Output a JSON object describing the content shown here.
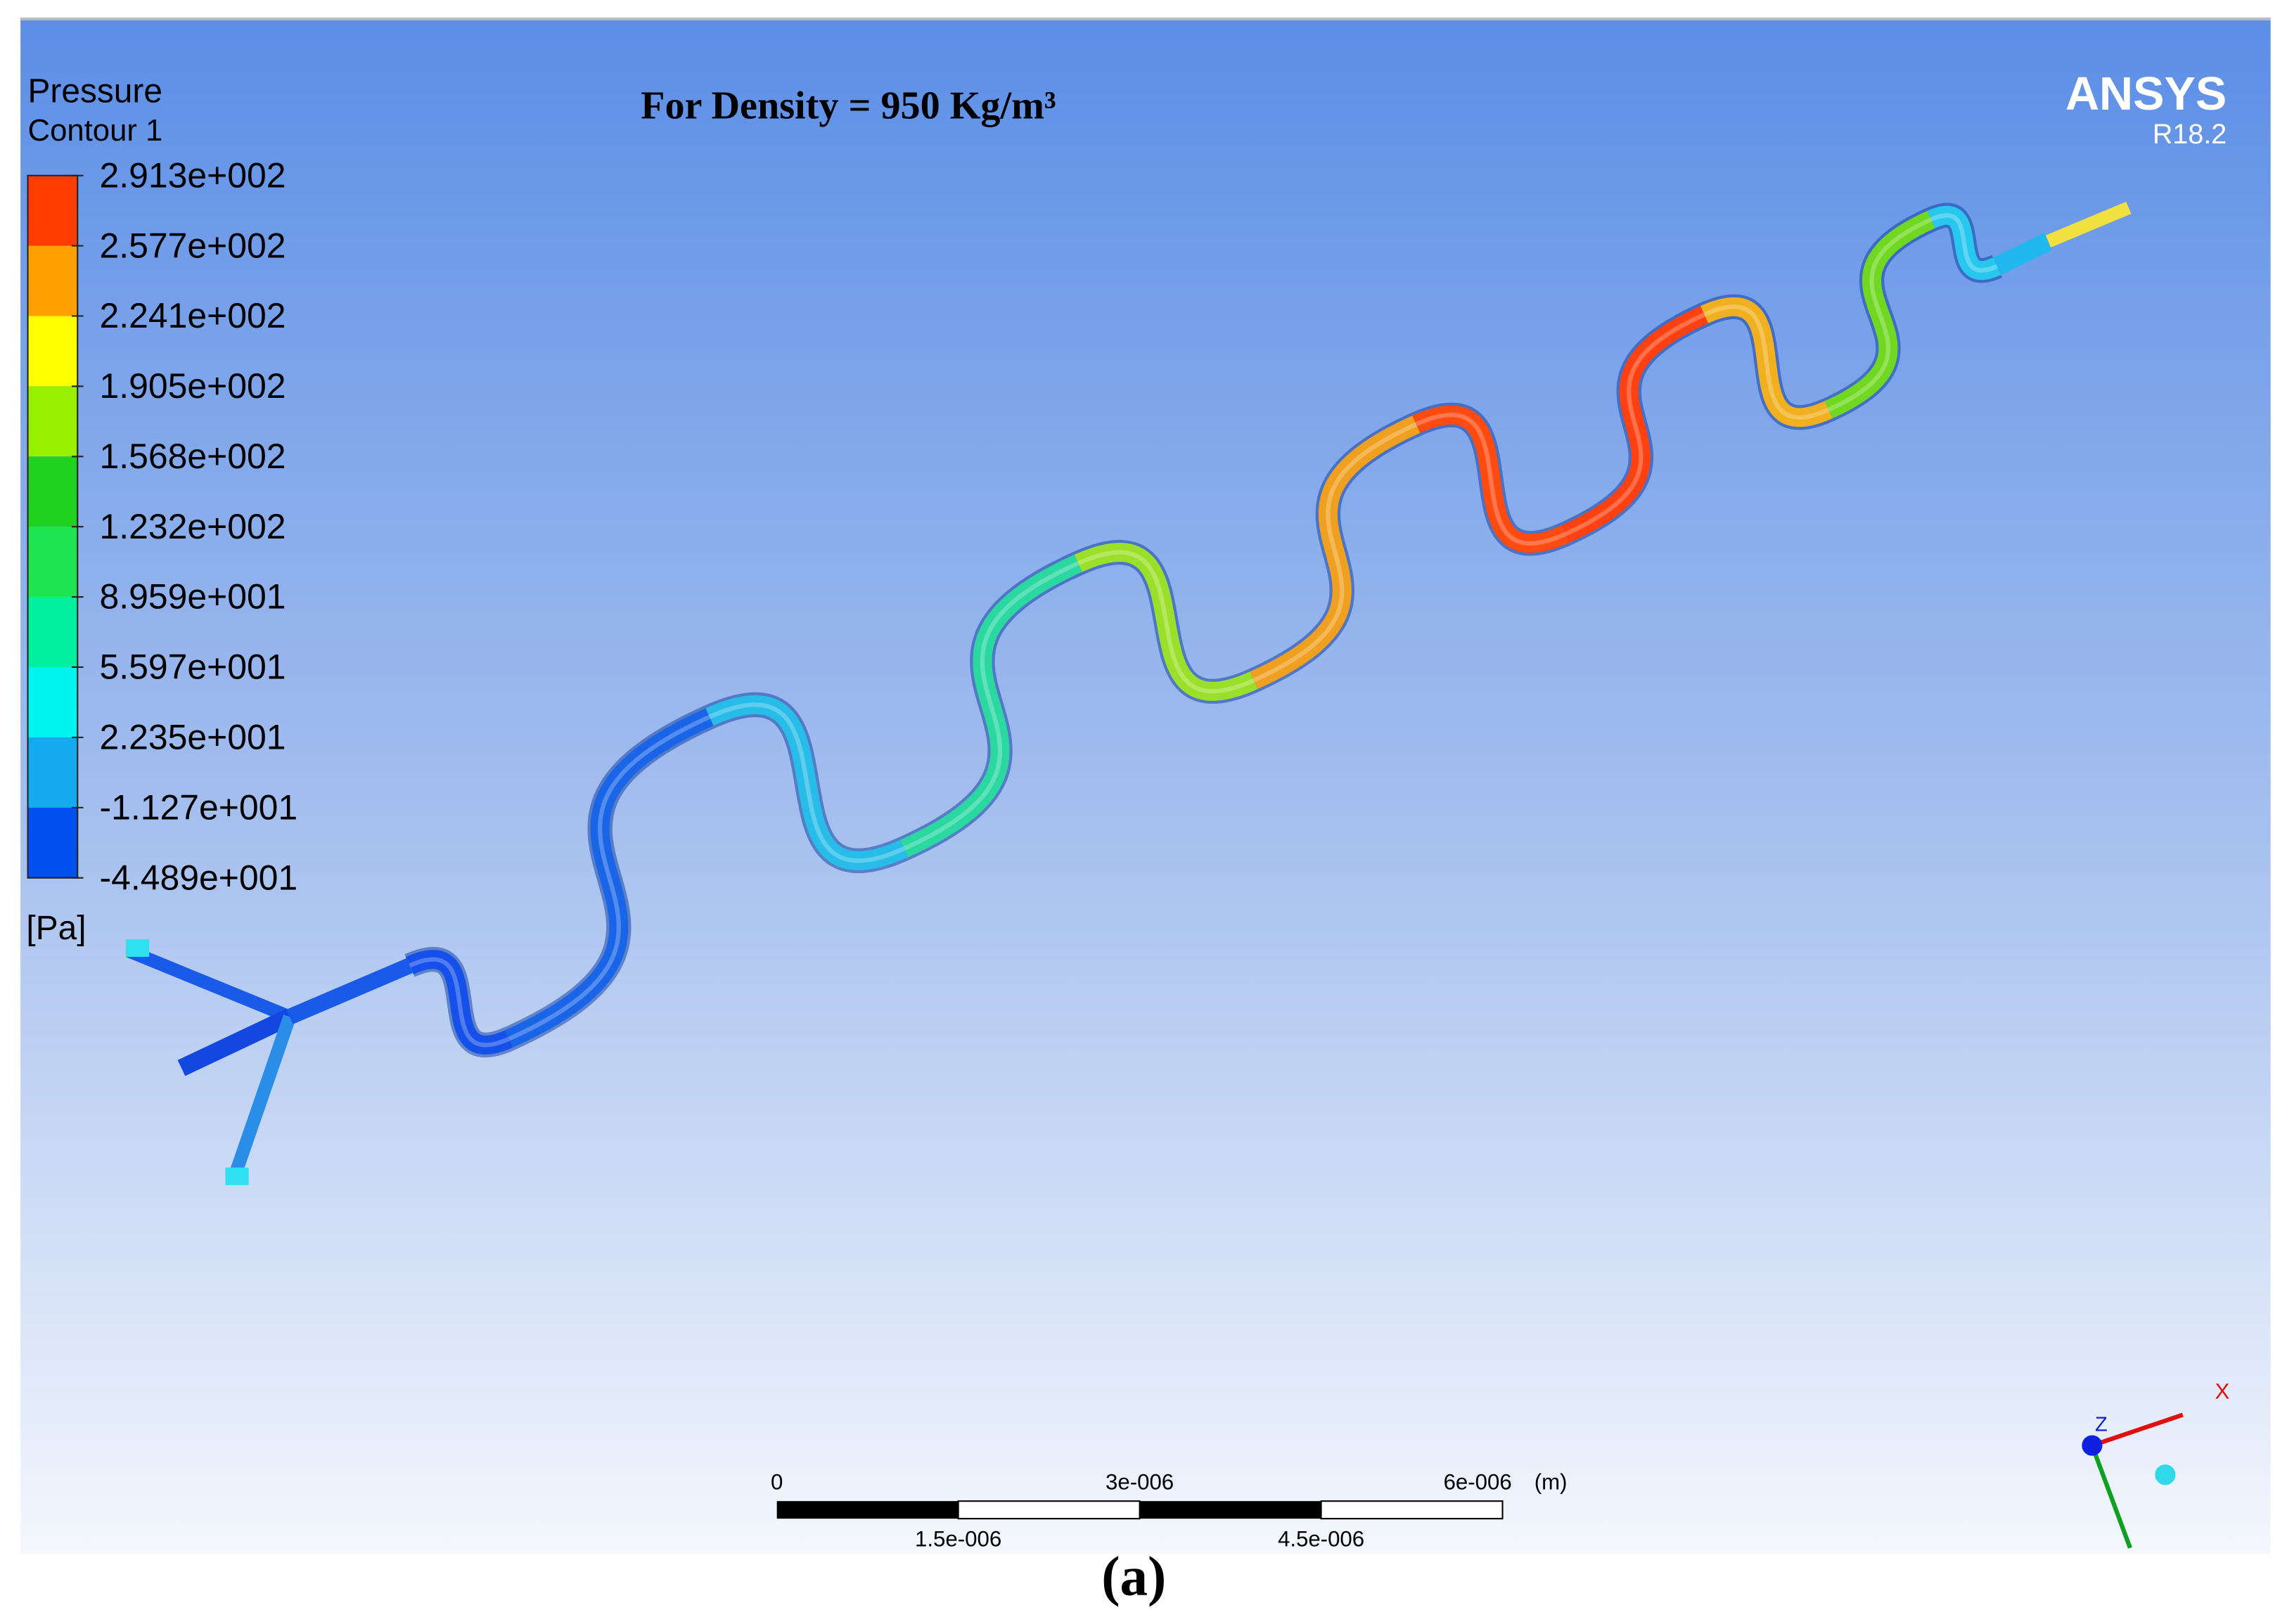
{
  "heading": "For Density = 950 Kg/m³",
  "legend": {
    "title": "Pressure",
    "subtitle": "Contour 1",
    "unit": "[Pa]",
    "levels": [
      "2.913e+002",
      "2.577e+002",
      "2.241e+002",
      "1.905e+002",
      "1.568e+002",
      "1.232e+002",
      "8.959e+001",
      "5.597e+001",
      "2.235e+001",
      "-1.127e+001",
      "-4.489e+001"
    ],
    "colors": [
      "#ff3c00",
      "#ffa000",
      "#ffff00",
      "#96f000",
      "#1ed21e",
      "#1ee650",
      "#00f0a0",
      "#00f5f0",
      "#14aaf0",
      "#0050f0"
    ]
  },
  "logo": {
    "name": "ANSYS",
    "version": "R18.2"
  },
  "scale_bar": {
    "top_labels": [
      "0",
      "3e-006",
      "6e-006"
    ],
    "unit": "(m)",
    "bottom_labels": [
      "1.5e-006",
      "4.5e-006"
    ]
  },
  "triad": {
    "x": "X",
    "z": "Z"
  },
  "caption": "(a)"
}
